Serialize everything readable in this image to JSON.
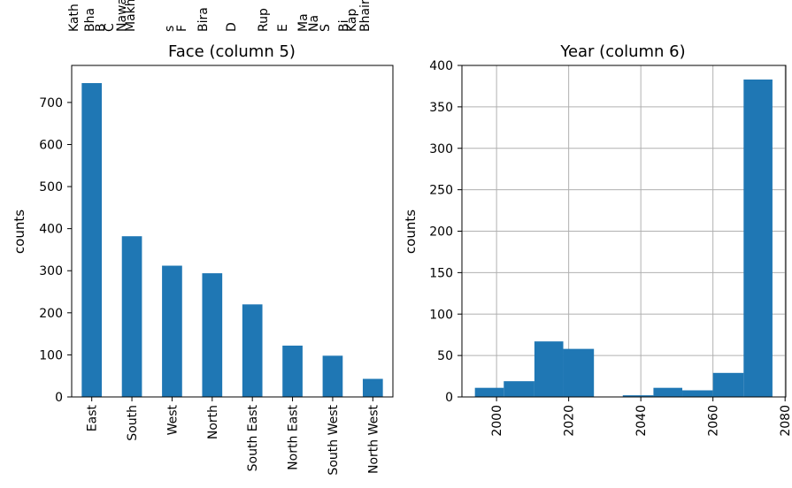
{
  "top_cut_labels": [
    "Kath",
    "Bha",
    "B",
    "C",
    "Nawa",
    "Makh",
    "s",
    "F",
    "Bira",
    "D",
    "Rup",
    "E",
    "Ma",
    "Na",
    "S",
    "Bi",
    "Kap",
    "Bhair"
  ],
  "chart_data": [
    {
      "type": "bar",
      "title": "Face (column 5)",
      "ylabel": "counts",
      "xlabel": "",
      "categories": [
        "East",
        "South",
        "West",
        "North",
        "South East",
        "North East",
        "South West",
        "North West"
      ],
      "values": [
        746,
        382,
        312,
        294,
        220,
        122,
        98,
        43
      ],
      "ylim": [
        0,
        788
      ],
      "yticks": [
        0,
        100,
        200,
        300,
        400,
        500,
        600,
        700
      ],
      "grid": false,
      "bar_color": "#1f77b4"
    },
    {
      "type": "histogram",
      "title": "Year (column 6)",
      "ylabel": "counts",
      "xlabel": "",
      "bins": [
        {
          "x0": 1994,
          "x1": 2002,
          "value": 11
        },
        {
          "x0": 2002,
          "x1": 2010.5,
          "value": 19
        },
        {
          "x0": 2010.5,
          "x1": 2018.5,
          "value": 67
        },
        {
          "x0": 2018.5,
          "x1": 2027,
          "value": 58
        },
        {
          "x0": 2027,
          "x1": 2035,
          "value": 0
        },
        {
          "x0": 2035,
          "x1": 2043.5,
          "value": 2
        },
        {
          "x0": 2043.5,
          "x1": 2051.5,
          "value": 11
        },
        {
          "x0": 2051.5,
          "x1": 2060,
          "value": 8
        },
        {
          "x0": 2060,
          "x1": 2068.5,
          "value": 29
        },
        {
          "x0": 2068.5,
          "x1": 2076.5,
          "value": 383
        }
      ],
      "xlim": [
        1990.4,
        2080.2
      ],
      "ylim": [
        0,
        400
      ],
      "xticks": [
        2000,
        2020,
        2040,
        2060,
        2080
      ],
      "yticks": [
        0,
        50,
        100,
        150,
        200,
        250,
        300,
        350,
        400
      ],
      "grid": true,
      "bar_color": "#1f77b4"
    }
  ]
}
